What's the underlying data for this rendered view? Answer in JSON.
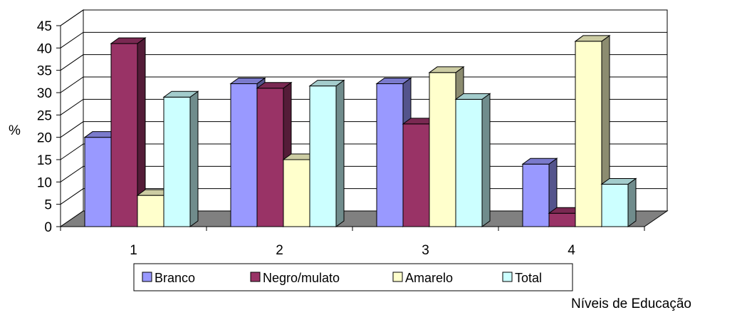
{
  "chart_data": {
    "type": "bar",
    "style": "3d-clustered-column",
    "categories": [
      "1",
      "2",
      "3",
      "4"
    ],
    "series": [
      {
        "name": "Branco",
        "values": [
          20,
          32,
          32,
          14
        ],
        "color": "#9999ff"
      },
      {
        "name": "Negro/mulato",
        "values": [
          41,
          31,
          23,
          3
        ],
        "color": "#993366"
      },
      {
        "name": "Amarelo",
        "values": [
          7,
          15,
          34.5,
          41.5
        ],
        "color": "#ffffcc"
      },
      {
        "name": "Total",
        "values": [
          29,
          31.5,
          28.5,
          9.5
        ],
        "color": "#ccffff"
      }
    ],
    "yticks": [
      "0",
      "5",
      "10",
      "15",
      "20",
      "25",
      "30",
      "35",
      "40",
      "45"
    ],
    "ylim": [
      0,
      45
    ],
    "ylabel": "%",
    "xlabel": "Níveis de Educação",
    "grid": true,
    "legend_position": "bottom"
  }
}
